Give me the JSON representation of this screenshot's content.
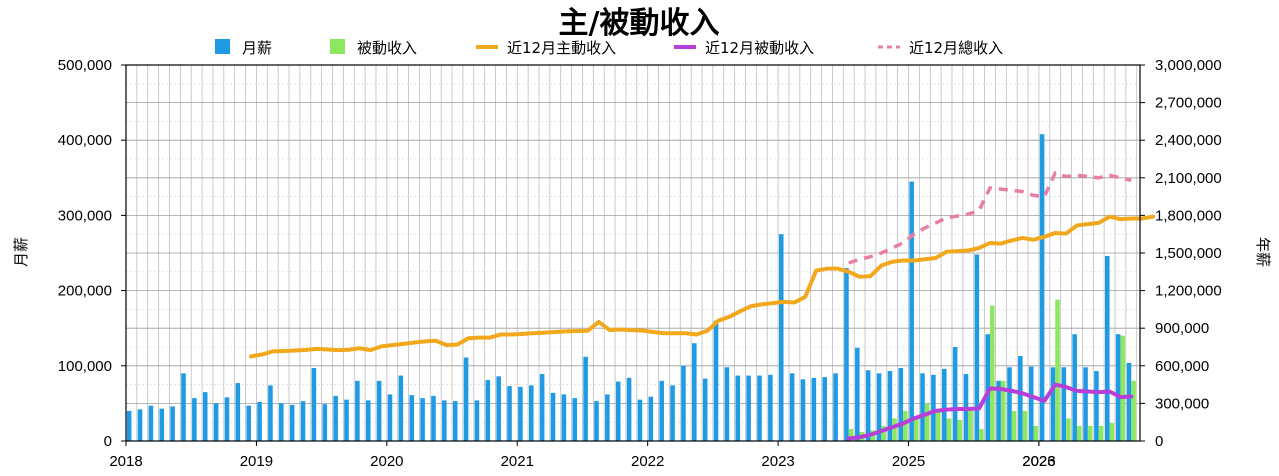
{
  "chart_data": {
    "type": "bar",
    "title": "主/被動收入",
    "ylabel": "月薪",
    "y2label": "年薪",
    "ylim": [
      0,
      500000
    ],
    "y2lim": [
      0,
      3000000
    ],
    "y_ticks": [
      "0",
      "100,000",
      "200,000",
      "300,000",
      "400,000",
      "500,000"
    ],
    "y2_ticks": [
      "0",
      "300,000",
      "600,000",
      "900,000",
      "1,200,000",
      "1,500,000",
      "1,800,000",
      "2,100,000",
      "2,400,000",
      "2,700,000",
      "3,000,000"
    ],
    "x_ticks": [
      {
        "label": "2018",
        "index": 0
      },
      {
        "label": "2019",
        "index": 12
      },
      {
        "label": "2020",
        "index": 24
      },
      {
        "label": "2021",
        "index": 36
      },
      {
        "label": "2022",
        "index": 48
      },
      {
        "label": "2023",
        "index": 60
      },
      {
        "label": "2025",
        "index": 72
      },
      {
        "label": "2026",
        "index": 84
      },
      {
        "label": "2023",
        "index": 84
      }
    ],
    "grid": true,
    "legend_position": "top",
    "legend": [
      {
        "label": "月薪",
        "kind": "bar",
        "color": "#1f9be6"
      },
      {
        "label": "被動收入",
        "kind": "bar",
        "color": "#8ee85f"
      },
      {
        "label": "近12月主動收入",
        "kind": "line",
        "color": "#f2a81d"
      },
      {
        "label": "近12月被動收入",
        "kind": "line",
        "color": "#b73fd8"
      },
      {
        "label": "近12月總收入",
        "kind": "dashed-line",
        "color": "#e77fa4"
      }
    ],
    "series": [
      {
        "name": "月薪",
        "type": "bar",
        "axis": "left",
        "color": "#1f9be6",
        "values": [
          40000,
          42000,
          47000,
          43000,
          46000,
          90000,
          57000,
          65000,
          50000,
          58000,
          77000,
          47000,
          52000,
          74000,
          50000,
          48000,
          53000,
          97000,
          49000,
          60000,
          55000,
          80000,
          54000,
          80000,
          62000,
          87000,
          61000,
          57000,
          60000,
          54000,
          53000,
          111000,
          54000,
          81000,
          86000,
          73000,
          72000,
          74000,
          89000,
          64000,
          62000,
          57000,
          112000,
          53000,
          62000,
          79000,
          84000,
          55000,
          59000,
          80000,
          74000,
          100000,
          130000,
          83000,
          160000,
          98000,
          87000,
          87000,
          87000,
          88000,
          275000,
          90000,
          82000,
          84000,
          85000,
          90000,
          230000,
          124000,
          94000,
          90000,
          93000,
          97000,
          345000,
          90000,
          88000,
          96000,
          125000,
          89000,
          248000,
          142000,
          80000,
          98000,
          113000,
          99000,
          408000,
          98000,
          98000,
          142000,
          98000,
          93000,
          246000,
          142000,
          104000
        ]
      },
      {
        "name": "被動收入",
        "type": "bar",
        "axis": "left",
        "color": "#8ee85f",
        "values": [
          0,
          0,
          0,
          0,
          0,
          0,
          0,
          0,
          0,
          0,
          0,
          0,
          0,
          0,
          0,
          0,
          0,
          0,
          0,
          0,
          0,
          0,
          0,
          0,
          0,
          0,
          0,
          0,
          0,
          0,
          0,
          0,
          0,
          0,
          0,
          0,
          0,
          0,
          0,
          0,
          0,
          0,
          0,
          0,
          0,
          0,
          0,
          0,
          0,
          0,
          0,
          0,
          0,
          0,
          0,
          0,
          0,
          0,
          0,
          0,
          0,
          0,
          0,
          0,
          0,
          0,
          16000,
          12000,
          14000,
          20000,
          30000,
          40000,
          30000,
          50000,
          40000,
          30000,
          28000,
          40000,
          16000,
          180000,
          80000,
          40000,
          40000,
          20000,
          0,
          188000,
          30000,
          20000,
          20000,
          20000,
          24000,
          140000,
          80000
        ]
      },
      {
        "name": "近12月主動收入",
        "type": "line",
        "axis": "right",
        "color": "#f2a81d",
        "values": [
          null,
          null,
          null,
          null,
          null,
          null,
          null,
          null,
          null,
          null,
          null,
          675000,
          690000,
          715000,
          718000,
          722000,
          726000,
          735000,
          730000,
          725000,
          728000,
          740000,
          725000,
          755000,
          765000,
          775000,
          785000,
          795000,
          800000,
          765000,
          770000,
          820000,
          825000,
          825000,
          850000,
          850000,
          855000,
          860000,
          865000,
          870000,
          875000,
          878000,
          880000,
          950000,
          885000,
          890000,
          885000,
          882000,
          870000,
          860000,
          860000,
          860000,
          850000,
          880000,
          960000,
          990000,
          1035000,
          1075000,
          1090000,
          1100000,
          1110000,
          1105000,
          1150000,
          1360000,
          1375000,
          1375000,
          1350000,
          1310000,
          1315000,
          1400000,
          1430000,
          1440000,
          1440000,
          1450000,
          1460000,
          1510000,
          1515000,
          1520000,
          1540000,
          1580000,
          1575000,
          1600000,
          1620000,
          1605000,
          1630000,
          1660000,
          1655000,
          1720000,
          1730000,
          1740000,
          1790000,
          1770000,
          1775000,
          1775000,
          1790000
        ]
      },
      {
        "name": "近12月被動收入",
        "type": "line",
        "axis": "right",
        "color": "#b73fd8",
        "values": [
          null,
          null,
          null,
          null,
          null,
          null,
          null,
          null,
          null,
          null,
          null,
          null,
          null,
          null,
          null,
          null,
          null,
          null,
          null,
          null,
          null,
          null,
          null,
          null,
          null,
          null,
          null,
          null,
          null,
          null,
          null,
          null,
          null,
          null,
          null,
          null,
          null,
          null,
          null,
          null,
          null,
          null,
          null,
          null,
          null,
          null,
          null,
          null,
          null,
          null,
          null,
          null,
          null,
          null,
          null,
          null,
          null,
          null,
          null,
          null,
          null,
          null,
          null,
          null,
          null,
          null,
          20000,
          30000,
          50000,
          80000,
          110000,
          140000,
          180000,
          210000,
          240000,
          250000,
          255000,
          255000,
          260000,
          420000,
          415000,
          400000,
          380000,
          350000,
          320000,
          450000,
          430000,
          400000,
          395000,
          390000,
          395000,
          350000,
          355000
        ]
      },
      {
        "name": "近12月總收入",
        "type": "dashed-line",
        "axis": "right",
        "color": "#e77fa4",
        "values": [
          null,
          null,
          null,
          null,
          null,
          null,
          null,
          null,
          null,
          null,
          null,
          null,
          null,
          null,
          null,
          null,
          null,
          null,
          null,
          null,
          null,
          null,
          null,
          null,
          null,
          null,
          null,
          null,
          null,
          null,
          null,
          null,
          null,
          null,
          null,
          null,
          null,
          null,
          null,
          null,
          null,
          null,
          null,
          null,
          null,
          null,
          null,
          null,
          null,
          null,
          null,
          null,
          null,
          null,
          null,
          null,
          null,
          null,
          null,
          null,
          null,
          null,
          null,
          null,
          null,
          null,
          1420000,
          1450000,
          1470000,
          1500000,
          1540000,
          1580000,
          1650000,
          1700000,
          1740000,
          1780000,
          1795000,
          1810000,
          1840000,
          2020000,
          2010000,
          2000000,
          1990000,
          1960000,
          1950000,
          2140000,
          2110000,
          2120000,
          2110000,
          2100000,
          2120000,
          2100000,
          2080000
        ]
      }
    ]
  }
}
